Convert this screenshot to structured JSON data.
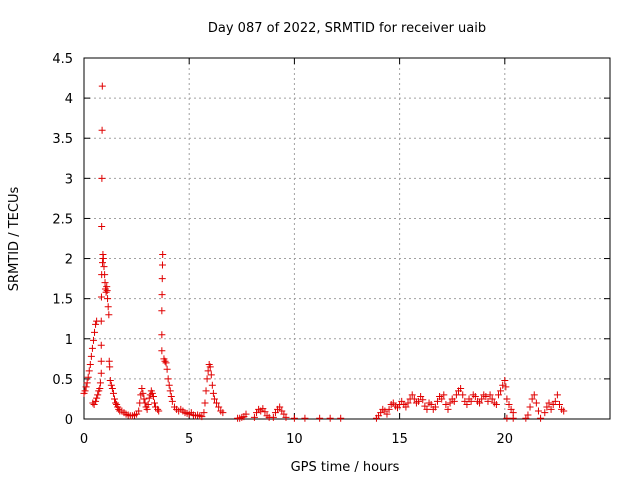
{
  "chart_data": {
    "type": "scatter",
    "title": "Day 087 of 2022, SRMTID for receiver uaib",
    "xlabel": "GPS time / hours",
    "ylabel": "SRMTID / TECUs",
    "xlim": [
      0,
      25
    ],
    "ylim": [
      0,
      4.5
    ],
    "x_ticks": [
      0,
      5,
      10,
      15,
      20
    ],
    "x_tick_labels": [
      "0",
      "5",
      "10",
      "15",
      "20"
    ],
    "y_ticks": [
      0,
      0.5,
      1,
      1.5,
      2,
      2.5,
      3,
      3.5,
      4,
      4.5
    ],
    "y_tick_labels": [
      "0",
      "0.5",
      "1",
      "1.5",
      "2",
      "2.5",
      "3",
      "3.5",
      "4",
      "4.5"
    ],
    "grid": true,
    "marker": "plus",
    "color": "#e00000",
    "series": [
      {
        "points": [
          [
            0.0,
            0.32
          ],
          [
            0.05,
            0.35
          ],
          [
            0.1,
            0.4
          ],
          [
            0.15,
            0.45
          ],
          [
            0.2,
            0.52
          ],
          [
            0.25,
            0.6
          ],
          [
            0.3,
            0.68
          ],
          [
            0.35,
            0.78
          ],
          [
            0.4,
            0.88
          ],
          [
            0.45,
            0.98
          ],
          [
            0.5,
            1.08
          ],
          [
            0.55,
            1.18
          ],
          [
            0.6,
            1.22
          ],
          [
            0.42,
            0.2
          ],
          [
            0.48,
            0.18
          ],
          [
            0.55,
            0.22
          ],
          [
            0.6,
            0.26
          ],
          [
            0.65,
            0.3
          ],
          [
            0.7,
            0.35
          ],
          [
            0.75,
            0.38
          ],
          [
            0.78,
            0.45
          ],
          [
            0.82,
            0.57
          ],
          [
            0.82,
            0.72
          ],
          [
            0.82,
            0.92
          ],
          [
            0.82,
            1.22
          ],
          [
            0.83,
            1.52
          ],
          [
            0.84,
            1.8
          ],
          [
            0.84,
            2.4
          ],
          [
            0.85,
            3.0
          ],
          [
            0.86,
            3.6
          ],
          [
            0.87,
            4.15
          ],
          [
            0.88,
            1.95
          ],
          [
            0.9,
            2.05
          ],
          [
            0.92,
            2.0
          ],
          [
            0.95,
            1.9
          ],
          [
            0.98,
            1.8
          ],
          [
            1.0,
            1.7
          ],
          [
            1.02,
            1.62
          ],
          [
            1.05,
            1.58
          ],
          [
            1.08,
            1.65
          ],
          [
            1.1,
            1.6
          ],
          [
            1.12,
            1.5
          ],
          [
            1.15,
            1.4
          ],
          [
            1.18,
            1.3
          ],
          [
            1.2,
            0.72
          ],
          [
            1.22,
            0.65
          ],
          [
            1.25,
            0.48
          ],
          [
            1.3,
            0.42
          ],
          [
            1.35,
            0.38
          ],
          [
            1.4,
            0.32
          ],
          [
            1.45,
            0.25
          ],
          [
            1.5,
            0.2
          ],
          [
            1.55,
            0.18
          ],
          [
            1.6,
            0.15
          ],
          [
            1.65,
            0.12
          ],
          [
            1.7,
            0.1
          ],
          [
            1.8,
            0.1
          ],
          [
            1.9,
            0.08
          ],
          [
            2.0,
            0.06
          ],
          [
            2.1,
            0.05
          ],
          [
            2.2,
            0.04
          ],
          [
            2.3,
            0.04
          ],
          [
            2.4,
            0.05
          ],
          [
            2.5,
            0.06
          ],
          [
            2.6,
            0.1
          ],
          [
            2.65,
            0.2
          ],
          [
            2.7,
            0.3
          ],
          [
            2.75,
            0.38
          ],
          [
            2.8,
            0.32
          ],
          [
            2.85,
            0.25
          ],
          [
            2.9,
            0.2
          ],
          [
            2.95,
            0.15
          ],
          [
            3.0,
            0.12
          ],
          [
            3.05,
            0.18
          ],
          [
            3.1,
            0.26
          ],
          [
            3.15,
            0.3
          ],
          [
            3.2,
            0.35
          ],
          [
            3.25,
            0.32
          ],
          [
            3.3,
            0.28
          ],
          [
            3.35,
            0.2
          ],
          [
            3.4,
            0.15
          ],
          [
            3.5,
            0.12
          ],
          [
            3.55,
            0.1
          ],
          [
            3.7,
            0.85
          ],
          [
            3.7,
            1.05
          ],
          [
            3.7,
            1.35
          ],
          [
            3.71,
            1.55
          ],
          [
            3.72,
            1.75
          ],
          [
            3.73,
            1.92
          ],
          [
            3.74,
            2.05
          ],
          [
            3.8,
            0.75
          ],
          [
            3.85,
            0.72
          ],
          [
            3.9,
            0.7
          ],
          [
            3.95,
            0.62
          ],
          [
            4.0,
            0.5
          ],
          [
            4.05,
            0.42
          ],
          [
            4.1,
            0.35
          ],
          [
            4.15,
            0.28
          ],
          [
            4.2,
            0.22
          ],
          [
            4.3,
            0.15
          ],
          [
            4.4,
            0.12
          ],
          [
            4.5,
            0.1
          ],
          [
            4.6,
            0.12
          ],
          [
            4.7,
            0.1
          ],
          [
            4.8,
            0.08
          ],
          [
            4.9,
            0.07
          ],
          [
            5.0,
            0.06
          ],
          [
            5.1,
            0.08
          ],
          [
            5.2,
            0.05
          ],
          [
            5.3,
            0.04
          ],
          [
            5.4,
            0.05
          ],
          [
            5.5,
            0.04
          ],
          [
            5.6,
            0.03
          ],
          [
            5.7,
            0.08
          ],
          [
            5.75,
            0.2
          ],
          [
            5.8,
            0.35
          ],
          [
            5.85,
            0.5
          ],
          [
            5.9,
            0.6
          ],
          [
            5.95,
            0.68
          ],
          [
            6.0,
            0.65
          ],
          [
            6.05,
            0.55
          ],
          [
            6.1,
            0.42
          ],
          [
            6.15,
            0.32
          ],
          [
            6.2,
            0.25
          ],
          [
            6.3,
            0.2
          ],
          [
            6.4,
            0.15
          ],
          [
            6.5,
            0.1
          ],
          [
            6.6,
            0.08
          ],
          [
            7.3,
            0.01
          ],
          [
            7.4,
            0.01
          ],
          [
            7.5,
            0.02
          ],
          [
            7.6,
            0.03
          ],
          [
            7.7,
            0.06
          ],
          [
            8.1,
            0.02
          ],
          [
            8.2,
            0.08
          ],
          [
            8.3,
            0.12
          ],
          [
            8.4,
            0.1
          ],
          [
            8.5,
            0.13
          ],
          [
            8.6,
            0.09
          ],
          [
            8.7,
            0.04
          ],
          [
            8.8,
            0.02
          ],
          [
            9.0,
            0.02
          ],
          [
            9.1,
            0.08
          ],
          [
            9.2,
            0.12
          ],
          [
            9.3,
            0.15
          ],
          [
            9.4,
            0.1
          ],
          [
            9.5,
            0.06
          ],
          [
            9.6,
            0.02
          ],
          [
            10.0,
            0.01
          ],
          [
            10.5,
            0.01
          ],
          [
            11.2,
            0.01
          ],
          [
            11.7,
            0.01
          ],
          [
            12.2,
            0.01
          ],
          [
            13.9,
            0.01
          ],
          [
            14.0,
            0.04
          ],
          [
            14.1,
            0.08
          ],
          [
            14.2,
            0.12
          ],
          [
            14.3,
            0.1
          ],
          [
            14.4,
            0.06
          ],
          [
            14.5,
            0.12
          ],
          [
            14.6,
            0.18
          ],
          [
            14.7,
            0.2
          ],
          [
            14.8,
            0.16
          ],
          [
            14.9,
            0.14
          ],
          [
            15.0,
            0.18
          ],
          [
            15.1,
            0.22
          ],
          [
            15.2,
            0.18
          ],
          [
            15.3,
            0.15
          ],
          [
            15.4,
            0.2
          ],
          [
            15.5,
            0.25
          ],
          [
            15.6,
            0.3
          ],
          [
            15.7,
            0.25
          ],
          [
            15.8,
            0.2
          ],
          [
            15.9,
            0.22
          ],
          [
            16.0,
            0.28
          ],
          [
            16.1,
            0.24
          ],
          [
            16.2,
            0.16
          ],
          [
            16.3,
            0.12
          ],
          [
            16.4,
            0.2
          ],
          [
            16.5,
            0.18
          ],
          [
            16.6,
            0.12
          ],
          [
            16.7,
            0.15
          ],
          [
            16.8,
            0.22
          ],
          [
            16.9,
            0.28
          ],
          [
            17.0,
            0.25
          ],
          [
            17.1,
            0.3
          ],
          [
            17.2,
            0.18
          ],
          [
            17.3,
            0.12
          ],
          [
            17.4,
            0.2
          ],
          [
            17.5,
            0.25
          ],
          [
            17.6,
            0.22
          ],
          [
            17.7,
            0.3
          ],
          [
            17.8,
            0.35
          ],
          [
            17.9,
            0.38
          ],
          [
            18.0,
            0.3
          ],
          [
            18.1,
            0.22
          ],
          [
            18.2,
            0.18
          ],
          [
            18.3,
            0.25
          ],
          [
            18.4,
            0.22
          ],
          [
            18.5,
            0.3
          ],
          [
            18.6,
            0.28
          ],
          [
            18.7,
            0.22
          ],
          [
            18.8,
            0.2
          ],
          [
            18.9,
            0.25
          ],
          [
            19.0,
            0.3
          ],
          [
            19.1,
            0.28
          ],
          [
            19.2,
            0.22
          ],
          [
            19.3,
            0.3
          ],
          [
            19.4,
            0.25
          ],
          [
            19.5,
            0.2
          ],
          [
            19.6,
            0.18
          ],
          [
            19.7,
            0.3
          ],
          [
            19.8,
            0.35
          ],
          [
            19.9,
            0.42
          ],
          [
            20.0,
            0.48
          ],
          [
            20.05,
            0.4
          ],
          [
            20.1,
            0.25
          ],
          [
            20.2,
            0.18
          ],
          [
            20.3,
            0.12
          ],
          [
            20.4,
            0.08
          ],
          [
            20.1,
            0.01
          ],
          [
            20.4,
            0.01
          ],
          [
            21.0,
            0.01
          ],
          [
            21.1,
            0.05
          ],
          [
            21.2,
            0.15
          ],
          [
            21.3,
            0.25
          ],
          [
            21.4,
            0.3
          ],
          [
            21.5,
            0.2
          ],
          [
            21.6,
            0.1
          ],
          [
            21.7,
            0.01
          ],
          [
            21.9,
            0.08
          ],
          [
            22.0,
            0.15
          ],
          [
            22.1,
            0.2
          ],
          [
            22.2,
            0.12
          ],
          [
            22.3,
            0.18
          ],
          [
            22.4,
            0.22
          ],
          [
            22.5,
            0.3
          ],
          [
            22.6,
            0.18
          ],
          [
            22.7,
            0.12
          ],
          [
            22.8,
            0.1
          ]
        ]
      }
    ]
  }
}
